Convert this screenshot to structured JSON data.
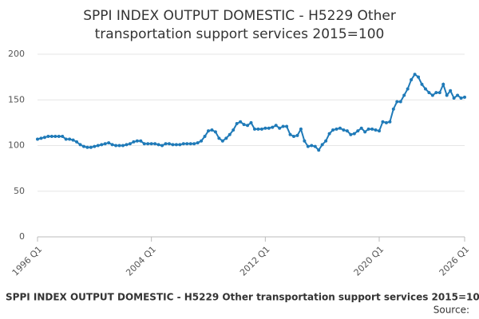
{
  "chart_data": {
    "type": "line",
    "title": [
      "SPPI INDEX OUTPUT DOMESTIC - H5229 Other",
      "transportation support services 2015=100"
    ],
    "footer": "SPPI INDEX OUTPUT DOMESTIC - H5229 Other transportation support services 2015=100",
    "source": "Source:",
    "categories": [
      "1996 Q1",
      null,
      null,
      null,
      null,
      null,
      null,
      null,
      null,
      null,
      null,
      null,
      null,
      null,
      null,
      null,
      null,
      null,
      null,
      null,
      null,
      null,
      null,
      null,
      null,
      null,
      null,
      null,
      null,
      null,
      null,
      null,
      "2004 Q1",
      null,
      null,
      null,
      null,
      null,
      null,
      null,
      null,
      null,
      null,
      null,
      null,
      null,
      null,
      null,
      null,
      null,
      null,
      null,
      null,
      null,
      null,
      null,
      null,
      null,
      null,
      null,
      null,
      null,
      null,
      null,
      "2012 Q1",
      null,
      null,
      null,
      null,
      null,
      null,
      null,
      null,
      null,
      null,
      null,
      null,
      null,
      null,
      null,
      null,
      null,
      null,
      null,
      null,
      null,
      null,
      null,
      null,
      null,
      null,
      null,
      null,
      null,
      null,
      null,
      "2020 Q1",
      null,
      null,
      null,
      null,
      null,
      null,
      null,
      null,
      null,
      null,
      null,
      null,
      null,
      null,
      null,
      null,
      null,
      null,
      null,
      null,
      null,
      null,
      null,
      "2026 Q1"
    ],
    "series": [
      {
        "color": "#1f7ab8",
        "values": [
          107,
          108,
          109,
          110,
          110,
          110,
          110,
          110,
          107,
          107,
          106,
          104,
          101,
          99,
          98,
          98,
          99,
          100,
          101,
          102,
          103,
          101,
          100,
          100,
          100,
          101,
          102,
          104,
          105,
          105,
          102,
          102,
          102,
          102,
          101,
          100,
          102,
          102,
          101,
          101,
          101,
          102,
          102,
          102,
          102,
          103,
          105,
          110,
          116,
          117,
          115,
          108,
          105,
          108,
          112,
          117,
          124,
          126,
          123,
          122,
          125,
          118,
          118,
          118,
          119,
          119,
          120,
          122,
          119,
          121,
          121,
          112,
          110,
          111,
          118,
          105,
          99,
          100,
          99,
          95,
          101,
          105,
          113,
          117,
          118,
          119,
          117,
          116,
          112,
          113,
          116,
          119,
          115,
          118,
          118,
          117,
          116,
          126,
          125,
          126,
          140,
          148,
          148,
          155,
          162,
          172,
          178,
          175,
          167,
          162,
          158,
          155,
          158,
          158,
          167,
          155,
          160,
          152,
          155,
          152,
          153
        ]
      }
    ],
    "ylim": [
      0,
      200
    ],
    "yticks": [
      0,
      50,
      100,
      150,
      200
    ],
    "grid": true
  }
}
